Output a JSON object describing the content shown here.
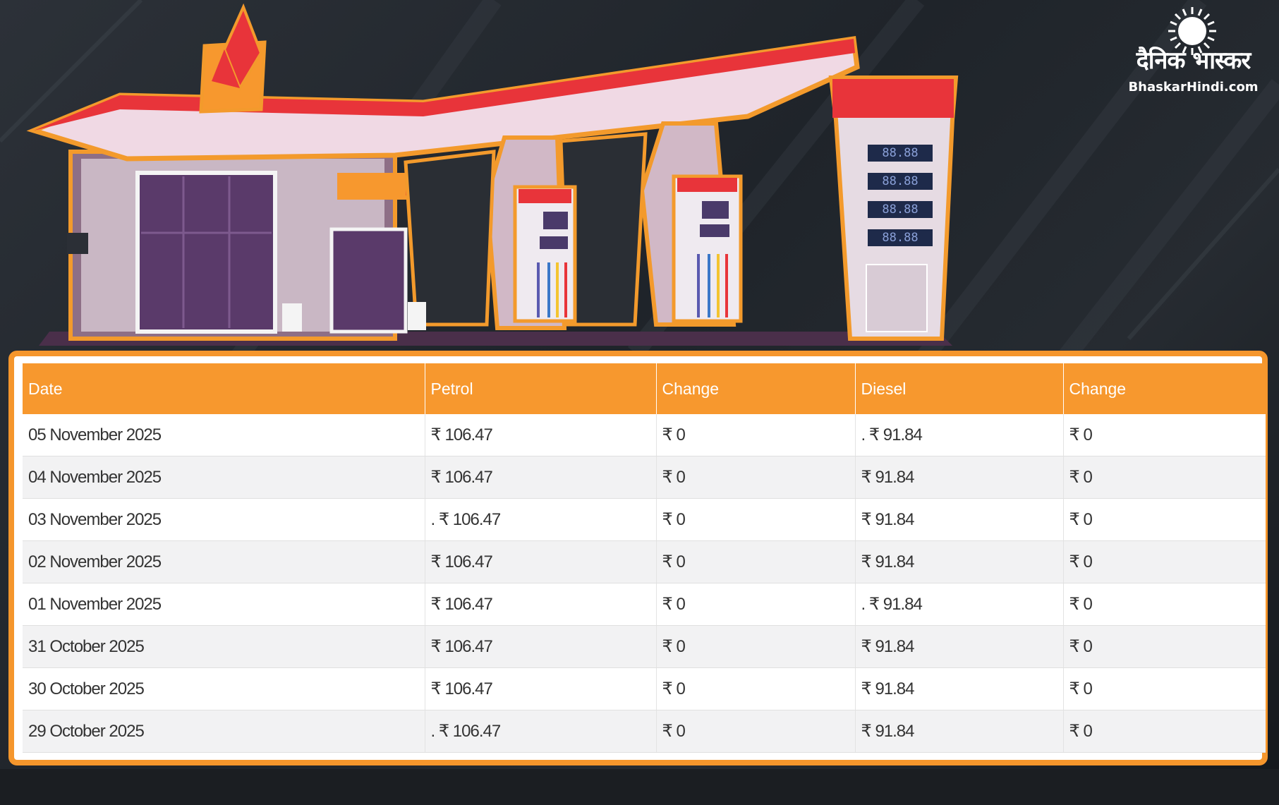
{
  "brand": {
    "logo_icon": "sun-icon",
    "name_hindi": "दैनिक भास्कर",
    "domain": "BhaskarHindi.com"
  },
  "illustration": {
    "icon": "petrol-pump-station-icon",
    "meter_readings": [
      "88.88",
      "88.88",
      "88.88",
      "88.88"
    ]
  },
  "colors": {
    "accent": "#f7982e",
    "canopy_red": "#e8343a",
    "background": "#23282e"
  },
  "table": {
    "headers": {
      "date": "Date",
      "petrol": "Petrol",
      "petrol_change": "Change",
      "diesel": "Diesel",
      "diesel_change": "Change"
    },
    "rows": [
      {
        "date": "05 November 2025",
        "petrol": "₹ 106.47",
        "petrol_change": "₹ 0",
        "diesel": ". ₹ 91.84",
        "diesel_change": "₹ 0"
      },
      {
        "date": "04 November 2025",
        "petrol": "₹ 106.47",
        "petrol_change": "₹ 0",
        "diesel": "₹ 91.84",
        "diesel_change": "₹ 0"
      },
      {
        "date": "03 November 2025",
        "petrol": ". ₹ 106.47",
        "petrol_change": "₹ 0",
        "diesel": "₹ 91.84",
        "diesel_change": "₹ 0"
      },
      {
        "date": "02 November 2025",
        "petrol": "₹ 106.47",
        "petrol_change": "₹ 0",
        "diesel": "₹ 91.84",
        "diesel_change": "₹ 0"
      },
      {
        "date": "01 November 2025",
        "petrol": "₹ 106.47",
        "petrol_change": "₹ 0",
        "diesel": ". ₹ 91.84",
        "diesel_change": "₹ 0"
      },
      {
        "date": "31 October 2025",
        "petrol": "₹ 106.47",
        "petrol_change": "₹ 0",
        "diesel": "₹ 91.84",
        "diesel_change": "₹ 0"
      },
      {
        "date": "30 October 2025",
        "petrol": "₹ 106.47",
        "petrol_change": "₹ 0",
        "diesel": "₹ 91.84",
        "diesel_change": "₹ 0"
      },
      {
        "date": "29 October 2025",
        "petrol": ". ₹ 106.47",
        "petrol_change": "₹ 0",
        "diesel": "₹ 91.84",
        "diesel_change": "₹ 0"
      }
    ]
  }
}
